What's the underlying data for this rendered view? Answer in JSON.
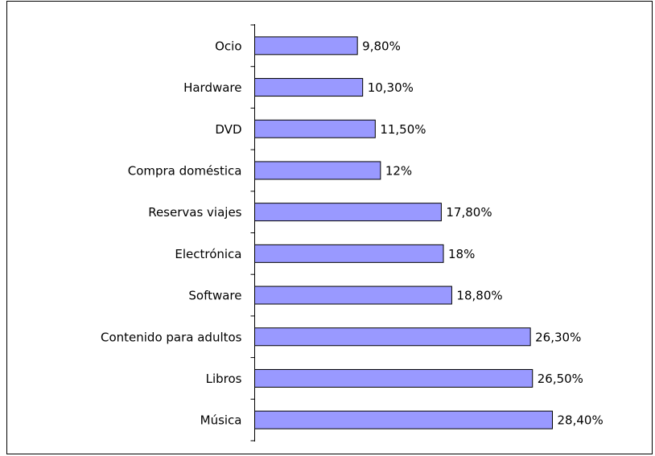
{
  "chart_data": {
    "type": "bar",
    "orientation": "horizontal",
    "categories": [
      "Ocio",
      "Hardware",
      "DVD",
      "Compra doméstica",
      "Reservas viajes",
      "Electrónica",
      "Software",
      "Contenido para adultos",
      "Libros",
      "Música"
    ],
    "values": [
      9.8,
      10.3,
      11.5,
      12,
      17.8,
      18,
      18.8,
      26.3,
      26.5,
      28.4
    ],
    "value_labels": [
      "9,80%",
      "10,30%",
      "11,50%",
      "12%",
      "17,80%",
      "18%",
      "18,80%",
      "26,30%",
      "26,50%",
      "28,40%"
    ],
    "color": "#9999ff"
  }
}
